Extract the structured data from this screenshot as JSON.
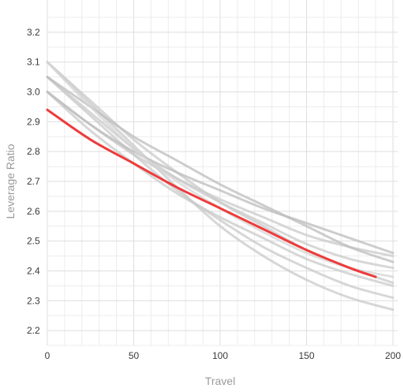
{
  "chart_data": {
    "type": "line",
    "xlabel": "Travel",
    "ylabel": "Leverage Ratio",
    "xlim": [
      0,
      200
    ],
    "ylim": [
      2.15,
      3.25
    ],
    "x_ticks": [
      0,
      50,
      100,
      150,
      200
    ],
    "y_ticks": [
      2.2,
      2.3,
      2.4,
      2.5,
      2.6,
      2.7,
      2.8,
      2.9,
      3.0,
      3.1,
      3.2
    ],
    "x_minor_step": 10,
    "y_minor_step": 0.05,
    "grid": true,
    "legend": "none",
    "highlight_color": "#ee3b3b",
    "series": [
      {
        "color": "#c9c9c9",
        "x": [
          0,
          25,
          50,
          75,
          100,
          125,
          150,
          175,
          200
        ],
        "y": [
          3.0,
          2.89,
          2.79,
          2.71,
          2.64,
          2.58,
          2.52,
          2.48,
          2.45
        ]
      },
      {
        "color": "#c9c9c9",
        "x": [
          0,
          25,
          50,
          75,
          100,
          125,
          150,
          175,
          200
        ],
        "y": [
          3.05,
          2.93,
          2.81,
          2.71,
          2.63,
          2.56,
          2.49,
          2.44,
          2.41
        ]
      },
      {
        "color": "#c9c9c9",
        "x": [
          0,
          25,
          50,
          75,
          100,
          125,
          150,
          175,
          200
        ],
        "y": [
          3.1,
          2.97,
          2.84,
          2.73,
          2.63,
          2.55,
          2.47,
          2.41,
          2.36
        ]
      },
      {
        "color": "#c9c9c9",
        "x": [
          0,
          25,
          50,
          75,
          100,
          125,
          150,
          175,
          200
        ],
        "y": [
          3.0,
          2.87,
          2.76,
          2.66,
          2.58,
          2.51,
          2.44,
          2.39,
          2.35
        ]
      },
      {
        "color": "#c9c9c9",
        "x": [
          0,
          25,
          50,
          75,
          100,
          125,
          150,
          175,
          200
        ],
        "y": [
          3.05,
          2.92,
          2.79,
          2.67,
          2.57,
          2.48,
          2.41,
          2.35,
          2.31
        ]
      },
      {
        "color": "#c9c9c9",
        "x": [
          0,
          25,
          50,
          75,
          100,
          125,
          150,
          175,
          200
        ],
        "y": [
          3.1,
          2.96,
          2.82,
          2.68,
          2.55,
          2.45,
          2.37,
          2.31,
          2.27
        ]
      },
      {
        "color": "#bcbcbc",
        "x": [
          0,
          25,
          50,
          75,
          100,
          125,
          150,
          175,
          200
        ],
        "y": [
          3.05,
          2.95,
          2.85,
          2.77,
          2.69,
          2.62,
          2.55,
          2.48,
          2.43
        ]
      },
      {
        "color": "#bcbcbc",
        "x": [
          0,
          25,
          50,
          75,
          100,
          125,
          150,
          175,
          200
        ],
        "y": [
          3.0,
          2.89,
          2.8,
          2.73,
          2.67,
          2.61,
          2.56,
          2.51,
          2.46
        ]
      },
      {
        "color": "#d5d5d5",
        "x": [
          0,
          25,
          50,
          75,
          100,
          125,
          150,
          175,
          200
        ],
        "y": [
          3.1,
          2.95,
          2.81,
          2.7,
          2.61,
          2.53,
          2.46,
          2.41,
          2.38
        ]
      },
      {
        "color": "#ee3b3b",
        "highlight": true,
        "x": [
          0,
          25,
          50,
          75,
          100,
          125,
          150,
          175,
          190
        ],
        "y": [
          2.94,
          2.84,
          2.76,
          2.68,
          2.61,
          2.54,
          2.47,
          2.41,
          2.38
        ]
      }
    ]
  }
}
